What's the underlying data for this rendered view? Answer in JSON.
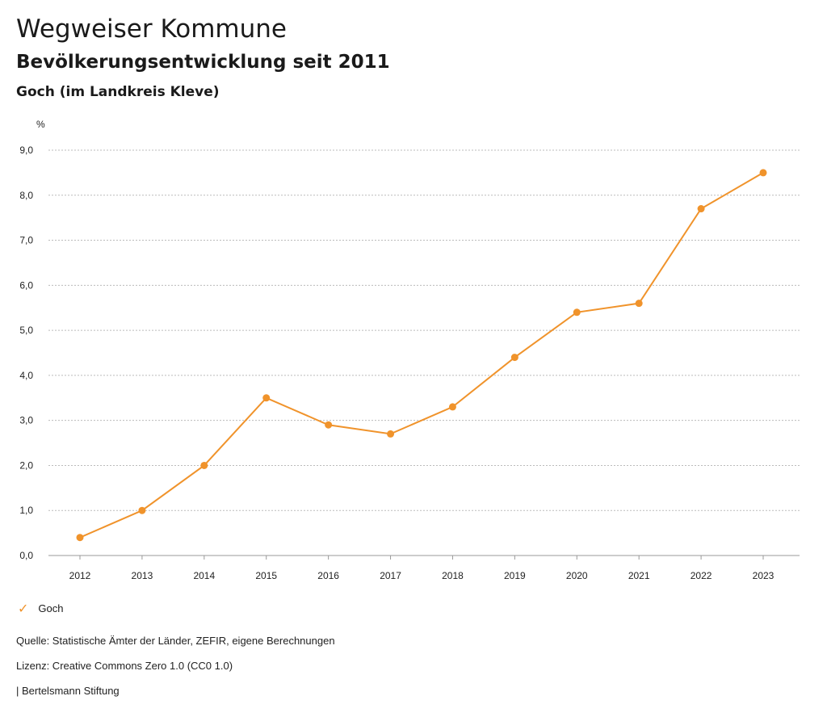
{
  "header": {
    "title": "Wegweiser Kommune",
    "subtitle": "Bevölkerungsentwicklung seit 2011",
    "region": "Goch (im Landkreis Kleve)"
  },
  "chart_data": {
    "type": "line",
    "title": "Bevölkerungsentwicklung seit 2011",
    "xlabel": "",
    "ylabel": "%",
    "x": [
      "2012",
      "2013",
      "2014",
      "2015",
      "2016",
      "2017",
      "2018",
      "2019",
      "2020",
      "2021",
      "2022",
      "2023"
    ],
    "series": [
      {
        "name": "Goch",
        "color": "#f0932b",
        "values": [
          0.4,
          1.0,
          2.0,
          3.5,
          2.9,
          2.7,
          3.3,
          4.4,
          5.4,
          5.6,
          7.7,
          8.5
        ]
      }
    ],
    "ylim": [
      0,
      9
    ],
    "yticks": [
      "0,0",
      "1,0",
      "2,0",
      "3,0",
      "4,0",
      "5,0",
      "6,0",
      "7,0",
      "8,0",
      "9,0"
    ],
    "grid": true,
    "legend_position": "bottom-left"
  },
  "legend": {
    "label": "Goch",
    "icon": "check-icon"
  },
  "footer": {
    "source": "Quelle: Statistische Ämter der Länder, ZEFIR, eigene Berechnungen",
    "license": "Lizenz: Creative Commons Zero 1.0 (CC0 1.0)",
    "publisher": "| Bertelsmann Stiftung"
  }
}
